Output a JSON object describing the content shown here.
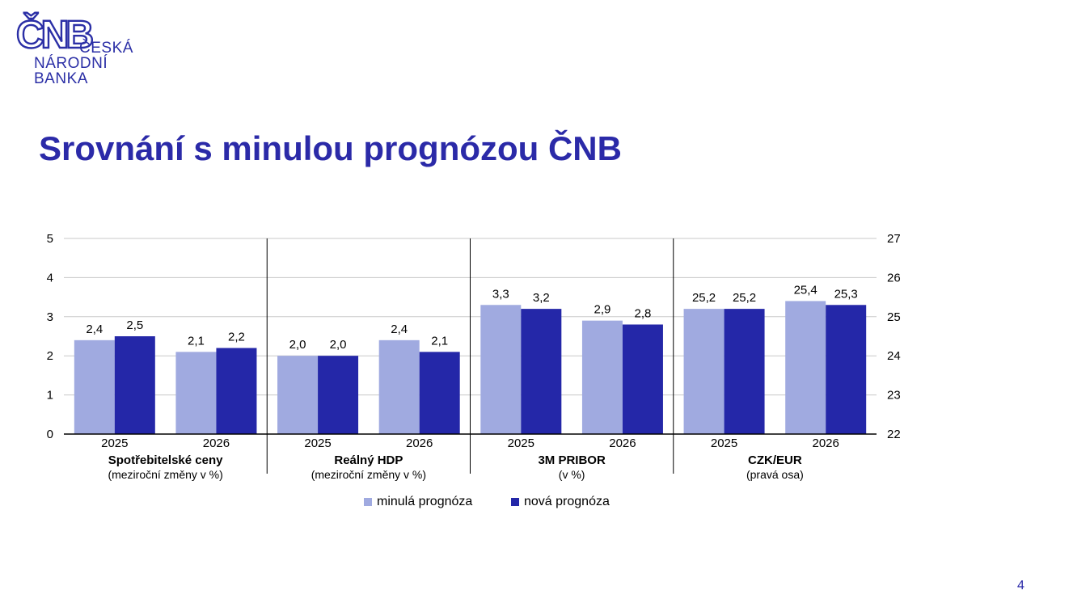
{
  "logo": {
    "mark": "ČNB",
    "line1": "ČESKÁ",
    "line2": "NÁRODNÍ",
    "line3": "BANKA"
  },
  "title": "Srovnání s minulou prognózou ČNB",
  "page_number": "4",
  "colors": {
    "previous": "#a0aae0",
    "new": "#2427a8",
    "title": "#2b2aa8"
  },
  "chart_data": {
    "type": "bar",
    "left_axis": {
      "ylim": [
        0,
        5
      ],
      "ticks": [
        "0",
        "1",
        "2",
        "3",
        "4",
        "5"
      ]
    },
    "right_axis": {
      "ylim": [
        22,
        27
      ],
      "ticks": [
        "22",
        "23",
        "24",
        "25",
        "26",
        "27"
      ]
    },
    "series": [
      {
        "name": "minulá prognóza"
      },
      {
        "name": "nová prognóza"
      }
    ],
    "groups": [
      {
        "name": "Spotřebitelské ceny",
        "subtitle": "(meziroční změny v %)",
        "axis": "left",
        "categories": [
          {
            "label": "2025",
            "values": [
              2.4,
              2.5
            ],
            "labels": [
              "2,4",
              "2,5"
            ]
          },
          {
            "label": "2026",
            "values": [
              2.1,
              2.2
            ],
            "labels": [
              "2,1",
              "2,2"
            ]
          }
        ]
      },
      {
        "name": "Reálný HDP",
        "subtitle": "(meziroční změny v %)",
        "axis": "left",
        "categories": [
          {
            "label": "2025",
            "values": [
              2.0,
              2.0
            ],
            "labels": [
              "2,0",
              "2,0"
            ]
          },
          {
            "label": "2026",
            "values": [
              2.4,
              2.1
            ],
            "labels": [
              "2,4",
              "2,1"
            ]
          }
        ]
      },
      {
        "name": "3M PRIBOR",
        "subtitle": "(v %)",
        "axis": "left",
        "categories": [
          {
            "label": "2025",
            "values": [
              3.3,
              3.2
            ],
            "labels": [
              "3,3",
              "3,2"
            ]
          },
          {
            "label": "2026",
            "values": [
              2.9,
              2.8
            ],
            "labels": [
              "2,9",
              "2,8"
            ]
          }
        ]
      },
      {
        "name": "CZK/EUR",
        "subtitle": "(pravá osa)",
        "axis": "right",
        "categories": [
          {
            "label": "2025",
            "values": [
              25.2,
              25.2
            ],
            "labels": [
              "25,2",
              "25,2"
            ]
          },
          {
            "label": "2026",
            "values": [
              25.4,
              25.3
            ],
            "labels": [
              "25,4",
              "25,3"
            ]
          }
        ]
      }
    ]
  }
}
